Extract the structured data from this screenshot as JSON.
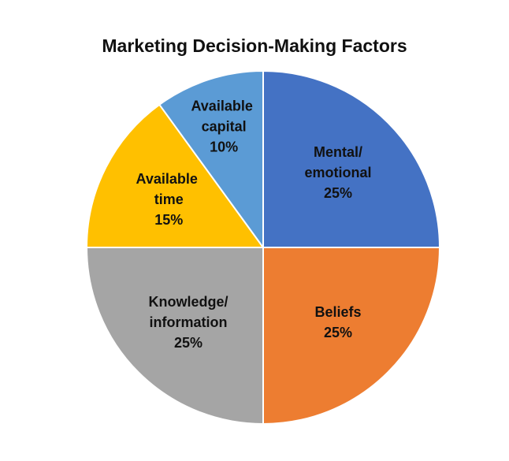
{
  "chart_data": {
    "type": "pie",
    "title": "Marketing Decision-Making Factors",
    "categories": [
      "Mental/emotional",
      "Beliefs",
      "Knowledge/information",
      "Available time",
      "Available capital"
    ],
    "values": [
      25,
      25,
      25,
      15,
      10
    ],
    "value_labels": [
      "25%",
      "25%",
      "25%",
      "15%",
      "10%"
    ],
    "colors": [
      "#4472c4",
      "#ed7d31",
      "#a5a5a5",
      "#ffc000",
      "#5b9bd5"
    ]
  }
}
